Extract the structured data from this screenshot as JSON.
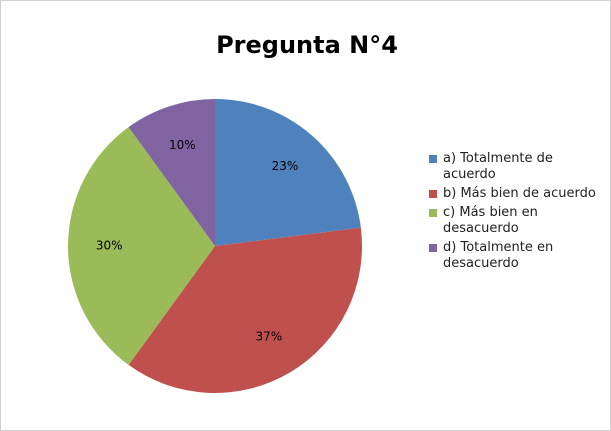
{
  "chart_data": {
    "type": "pie",
    "title": "Pregunta N°4",
    "categories": [
      "a) Totalmente de acuerdo",
      "b) Más bien de acuerdo",
      "c) Más bien en desacuerdo",
      "d) Totalmente en desacuerdo"
    ],
    "values": [
      23,
      37,
      30,
      10
    ],
    "value_labels": [
      "23%",
      "37%",
      "30%",
      "10%"
    ],
    "colors": [
      "#4f81bd",
      "#c0504d",
      "#9bbb59",
      "#8064a2"
    ],
    "legend": "right"
  }
}
